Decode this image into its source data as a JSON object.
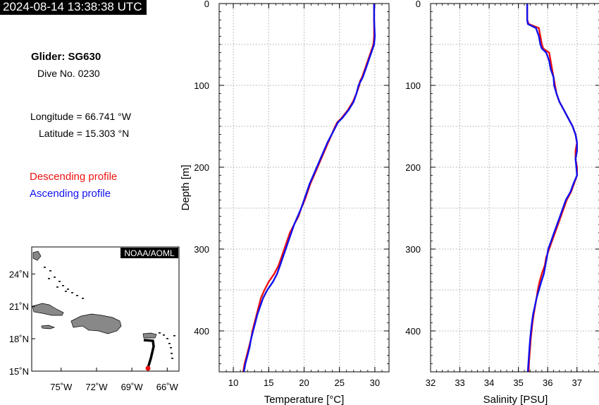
{
  "header": {
    "timestamp": "2024-08-14 13:38:38 UTC"
  },
  "info": {
    "glider": "Glider: SG630",
    "dive": "Dive No. 0230",
    "longitude": "Longitude = 66.741 °W",
    "latitude": "Latitude = 15.303 °N"
  },
  "legend": {
    "descending": "Descending profile",
    "ascending": "Ascending profile",
    "descending_color": "#ee1111",
    "ascending_color": "#1111ee"
  },
  "map": {
    "badge": "NOAA/AOML",
    "lat_ticks": [
      "24˚N",
      "21˚N",
      "18˚N",
      "15˚N"
    ],
    "lon_ticks": [
      "75˚W",
      "72˚W",
      "69˚W",
      "66˚W"
    ],
    "land_color": "#888888",
    "track_color": "#000000",
    "marker_color": "#ee1111"
  },
  "chart_data": [
    {
      "type": "line",
      "xlabel": "Temperature [°C]",
      "ylabel": "Depth [m]",
      "xlim": [
        8,
        32
      ],
      "ylim": [
        450,
        0
      ],
      "x_ticks": [
        "10",
        "15",
        "20",
        "25",
        "30"
      ],
      "y_ticks": [
        "0",
        "100",
        "200",
        "300",
        "400"
      ],
      "grid": true,
      "series": [
        {
          "name": "Descending profile",
          "color": "#ee1111",
          "depth": [
            0,
            20,
            40,
            50,
            60,
            70,
            80,
            90,
            95,
            100,
            110,
            120,
            130,
            140,
            145,
            150,
            160,
            170,
            180,
            190,
            200,
            210,
            220,
            230,
            240,
            250,
            260,
            270,
            280,
            290,
            300,
            310,
            320,
            330,
            340,
            350,
            360,
            370,
            380,
            390,
            400,
            410,
            420,
            430,
            440,
            450
          ],
          "values": [
            29.9,
            29.9,
            29.9,
            29.8,
            29.4,
            29.0,
            28.6,
            28.2,
            27.9,
            27.8,
            27.4,
            26.9,
            26.2,
            25.3,
            24.7,
            24.4,
            23.9,
            23.4,
            22.9,
            22.4,
            21.9,
            21.4,
            20.9,
            20.5,
            20.1,
            19.6,
            19.2,
            18.6,
            18.0,
            17.6,
            17.2,
            16.8,
            16.4,
            15.8,
            15.0,
            14.4,
            13.9,
            13.6,
            13.3,
            13.0,
            12.7,
            12.5,
            12.2,
            11.9,
            11.6,
            11.4
          ]
        },
        {
          "name": "Ascending profile",
          "color": "#1111ee",
          "depth": [
            0,
            20,
            40,
            50,
            60,
            70,
            80,
            90,
            95,
            100,
            110,
            120,
            130,
            140,
            145,
            150,
            160,
            170,
            180,
            190,
            200,
            210,
            220,
            230,
            240,
            250,
            260,
            270,
            280,
            290,
            300,
            310,
            320,
            330,
            340,
            350,
            360,
            370,
            380,
            390,
            400,
            410,
            420,
            430,
            440,
            450
          ],
          "values": [
            29.9,
            29.9,
            30.0,
            29.9,
            29.5,
            29.1,
            28.7,
            28.3,
            28.0,
            27.7,
            27.4,
            27.0,
            26.3,
            25.4,
            24.8,
            24.5,
            23.9,
            23.3,
            22.8,
            22.3,
            21.8,
            21.3,
            20.8,
            20.4,
            20.0,
            19.6,
            19.1,
            18.6,
            18.2,
            17.8,
            17.4,
            17.0,
            16.6,
            16.2,
            15.6,
            14.8,
            14.2,
            13.8,
            13.4,
            13.1,
            12.8,
            12.5,
            12.3,
            12.0,
            11.7,
            11.5
          ]
        }
      ]
    },
    {
      "type": "line",
      "xlabel": "Salinity [PSU]",
      "ylabel": "",
      "xlim": [
        32,
        37.8
      ],
      "ylim": [
        450,
        0
      ],
      "x_ticks": [
        "32",
        "33",
        "34",
        "35",
        "36",
        "37"
      ],
      "y_ticks": [
        "0",
        "100",
        "200",
        "300",
        "400"
      ],
      "grid": true,
      "series": [
        {
          "name": "Descending profile",
          "color": "#ee1111",
          "depth": [
            0,
            20,
            25,
            30,
            40,
            50,
            55,
            60,
            70,
            80,
            90,
            100,
            110,
            120,
            130,
            140,
            150,
            160,
            170,
            180,
            190,
            200,
            210,
            220,
            230,
            240,
            250,
            260,
            270,
            280,
            290,
            300,
            310,
            320,
            330,
            340,
            350,
            360,
            370,
            380,
            390,
            400,
            410,
            420,
            430,
            440,
            450
          ],
          "values": [
            35.3,
            35.3,
            35.35,
            35.7,
            35.75,
            35.8,
            35.85,
            36.05,
            36.1,
            36.15,
            36.2,
            36.25,
            36.3,
            36.4,
            36.55,
            36.7,
            36.85,
            36.95,
            37.0,
            36.95,
            36.95,
            37.0,
            37.0,
            36.9,
            36.8,
            36.65,
            36.55,
            36.45,
            36.35,
            36.25,
            36.15,
            36.05,
            35.95,
            35.9,
            35.8,
            35.72,
            35.66,
            35.62,
            35.57,
            35.52,
            35.48,
            35.45,
            35.42,
            35.4,
            35.38,
            35.36,
            35.35
          ]
        },
        {
          "name": "Ascending profile",
          "color": "#1111ee",
          "depth": [
            0,
            20,
            25,
            30,
            40,
            50,
            55,
            60,
            70,
            80,
            90,
            100,
            110,
            120,
            130,
            140,
            150,
            160,
            170,
            180,
            190,
            200,
            210,
            220,
            230,
            240,
            250,
            260,
            270,
            280,
            290,
            300,
            310,
            320,
            330,
            340,
            350,
            360,
            370,
            380,
            390,
            400,
            410,
            420,
            430,
            440,
            450
          ],
          "values": [
            35.3,
            35.3,
            35.32,
            35.6,
            35.7,
            35.75,
            35.8,
            35.95,
            36.05,
            36.1,
            36.2,
            36.22,
            36.3,
            36.4,
            36.55,
            36.7,
            36.85,
            36.95,
            37.0,
            37.0,
            36.95,
            36.98,
            37.0,
            36.88,
            36.78,
            36.62,
            36.52,
            36.42,
            36.32,
            36.22,
            36.12,
            36.02,
            35.97,
            35.92,
            35.87,
            35.78,
            35.7,
            35.62,
            35.56,
            35.5,
            35.46,
            35.43,
            35.4,
            35.38,
            35.36,
            35.34,
            35.32
          ]
        }
      ]
    }
  ]
}
